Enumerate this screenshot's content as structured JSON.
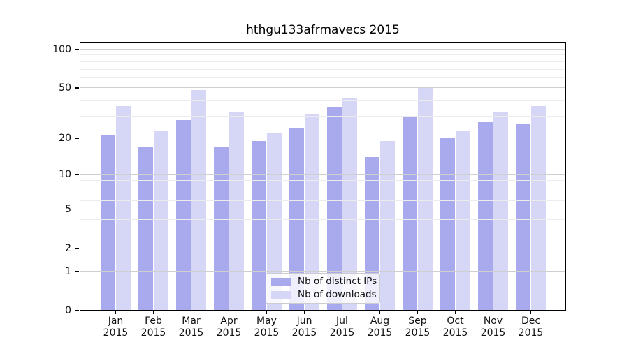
{
  "chart_data": {
    "type": "bar",
    "title": "hthgu133afrmavecs 2015",
    "categories": [
      "Jan",
      "Feb",
      "Mar",
      "Apr",
      "May",
      "Jun",
      "Jul",
      "Aug",
      "Sep",
      "Oct",
      "Nov",
      "Dec"
    ],
    "category_year": "2015",
    "series": [
      {
        "name": "Nb of distinct IPs",
        "color": "#a9a9ee",
        "values": [
          21,
          17,
          28,
          17,
          19,
          24,
          35,
          14,
          30,
          20,
          27,
          26
        ]
      },
      {
        "name": "Nb of downloads",
        "color": "#d6d6f6",
        "values": [
          36,
          23,
          48,
          32,
          22,
          31,
          42,
          19,
          51,
          23,
          32,
          36
        ]
      }
    ],
    "yscale": "log1p",
    "yticks": [
      0,
      1,
      2,
      5,
      10,
      20,
      50,
      100
    ],
    "ylim": [
      0,
      115
    ],
    "xlabel": "",
    "ylabel": "",
    "grid": true,
    "legend_position": "lower center"
  }
}
